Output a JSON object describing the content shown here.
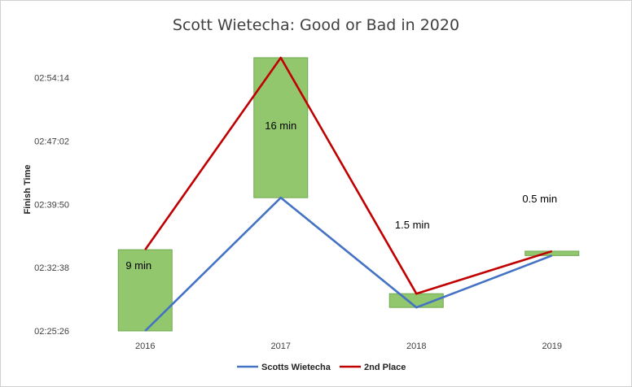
{
  "chart_data": {
    "type": "line",
    "title": "Scott Wietecha:  Good or Bad in 2020",
    "ylabel": "Finish Time",
    "xlabel": "",
    "categories": [
      "2016",
      "2017",
      "2018",
      "2019"
    ],
    "y_ticks": [
      "02:25:26",
      "02:32:38",
      "02:39:50",
      "02:47:02",
      "02:54:14"
    ],
    "ylim": [
      "02:25:26",
      "02:56:30"
    ],
    "series": [
      {
        "name": "Scotts Wietecha",
        "color": "#4472C4",
        "values": [
          "02:25:26",
          "02:40:35",
          "02:28:06",
          "02:34:00"
        ]
      },
      {
        "name": "2nd Place",
        "color": "#C00000",
        "values": [
          "02:34:40",
          "02:56:30",
          "02:29:40",
          "02:34:30"
        ]
      }
    ],
    "gap_boxes": {
      "color": "#92C76E",
      "labels": [
        "9 min",
        "16 min",
        "1.5 min",
        "0.5 min"
      ]
    },
    "legend_position": "bottom",
    "grid": false
  }
}
